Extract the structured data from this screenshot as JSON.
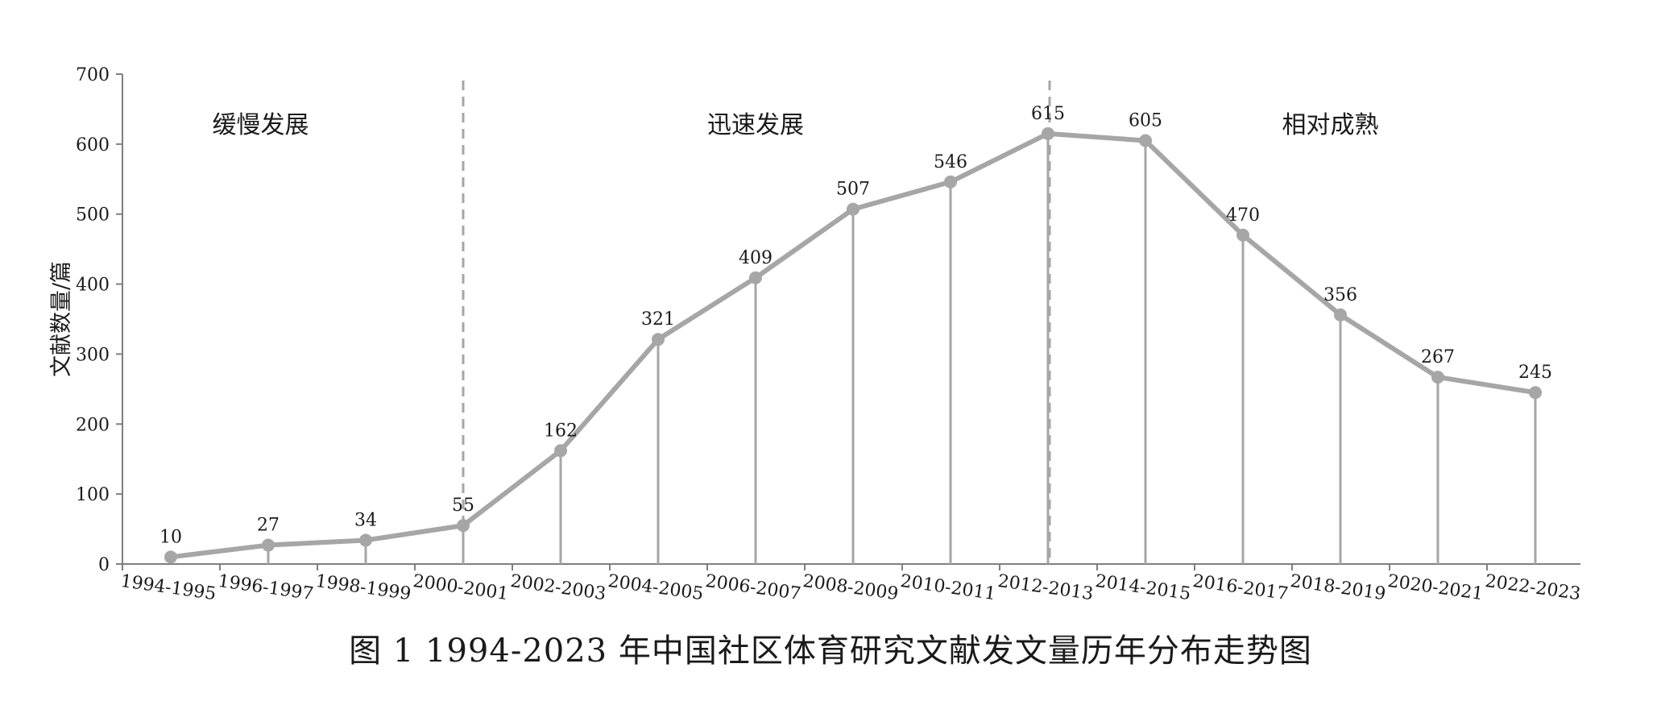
{
  "caption": "图 1   1994-2023 年中国社区体育研究文献发文量历年分布走势图",
  "chart_data": {
    "type": "line",
    "title": "",
    "xlabel": "",
    "ylabel": "文献数量/篇",
    "ylim": [
      0,
      700
    ],
    "yticks": [
      0,
      100,
      200,
      300,
      400,
      500,
      600,
      700
    ],
    "categories": [
      "1994-1995",
      "1996-1997",
      "1998-1999",
      "2000-2001",
      "2002-2003",
      "2004-2005",
      "2006-2007",
      "2008-2009",
      "2010-2011",
      "2012-2013",
      "2014-2015",
      "2016-2017",
      "2018-2019",
      "2020-2021",
      "2022-2023"
    ],
    "values": [
      10,
      27,
      34,
      55,
      162,
      321,
      409,
      507,
      546,
      615,
      605,
      470,
      356,
      267,
      245
    ],
    "data_labels": [
      "10",
      "27",
      "34",
      "55",
      "162",
      "321",
      "409",
      "507",
      "546",
      "615",
      "605",
      "470",
      "356",
      "267",
      "245"
    ],
    "phases": [
      {
        "label": "缓慢发展"
      },
      {
        "label": "迅速发展"
      },
      {
        "label": "相对成熟"
      }
    ],
    "dividers_after_category": [
      "2000-2001",
      "2012-2013"
    ],
    "grid": false,
    "line_color": "#a6a6a6",
    "axis_color": "#7f7f7f",
    "divider_color": "#a6a6a6"
  }
}
